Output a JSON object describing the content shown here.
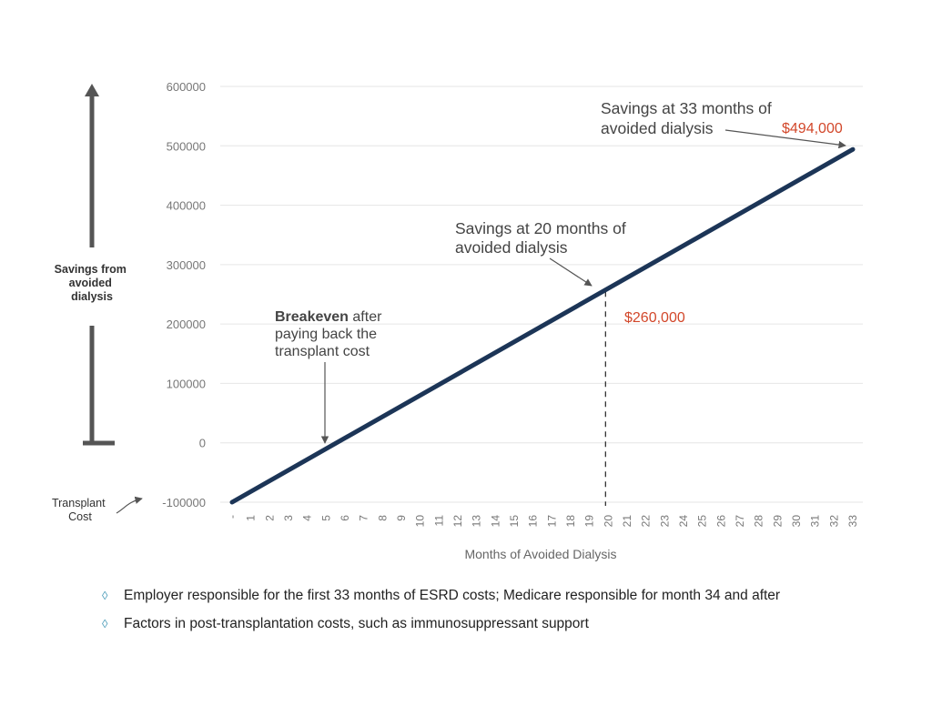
{
  "chart_data": {
    "type": "line",
    "title": "",
    "xlabel": "Months of Avoided Dialysis",
    "ylabel": "Savings from avoided dialysis",
    "ylim": [
      -100000,
      600000
    ],
    "yticks": [
      -100000,
      0,
      100000,
      200000,
      300000,
      400000,
      500000,
      600000
    ],
    "ytick_labels": [
      "-100000",
      "0",
      "100000",
      "200000",
      "300000",
      "400000",
      "500000",
      "600000"
    ],
    "x_categories": [
      "-",
      "1",
      "2",
      "3",
      "4",
      "5",
      "6",
      "7",
      "8",
      "9",
      "10",
      "11",
      "12",
      "13",
      "14",
      "15",
      "16",
      "17",
      "18",
      "19",
      "20",
      "21",
      "22",
      "23",
      "24",
      "25",
      "26",
      "27",
      "28",
      "29",
      "30",
      "31",
      "32",
      "33"
    ],
    "grid": "horizontal",
    "series": [
      {
        "x": [
          0,
          33
        ],
        "y": [
          -100000,
          494000
        ],
        "color": "#1c3557"
      }
    ],
    "annotations": {
      "transplant_cost": "Transplant\nCost",
      "breakeven_bold": "Breakeven",
      "breakeven_rest": " after\npaying back the\ntransplant cost",
      "savings_20": "Savings at 20 months of\navoided dialysis",
      "value_20": "$260,000",
      "savings_33": "Savings at 33 months of\navoided dialysis",
      "value_33": "$494,000"
    },
    "colors": {
      "line": "#1c3557",
      "value_text": "#d2472a",
      "grid": "#e6e6e6",
      "arrow": "#595959"
    }
  },
  "bullets": [
    "Employer responsible for the first 33 months of ESRD costs; Medicare responsible for month 34 and after",
    "Factors in post-transplantation costs, such as immunosuppressant support"
  ]
}
